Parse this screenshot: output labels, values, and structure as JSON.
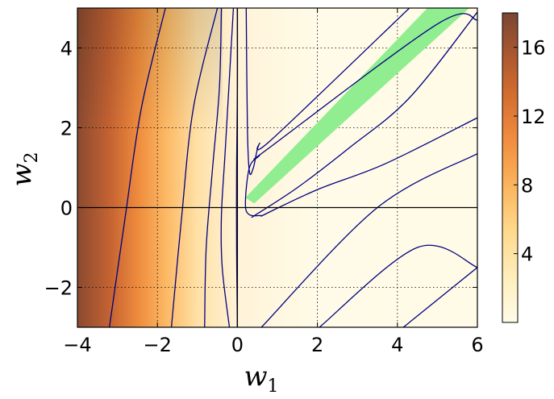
{
  "chart_data": {
    "type": "heatmap",
    "title": "",
    "xlabel": "w",
    "xlabel_sub": "1",
    "ylabel": "w",
    "ylabel_sub": "2",
    "xlim": [
      -4,
      6
    ],
    "ylim": [
      -3,
      5
    ],
    "x_ticks": [
      -4,
      -2,
      0,
      2,
      4,
      6
    ],
    "y_ticks": [
      -2,
      0,
      2,
      4
    ],
    "x_tick_labels": [
      "−4",
      "−2",
      "0",
      "2",
      "4",
      "6"
    ],
    "y_tick_labels": [
      "−2",
      "0",
      "2",
      "4"
    ],
    "grid": true,
    "colorbar": {
      "range": [
        0,
        18
      ],
      "ticks": [
        4,
        8,
        12,
        16
      ],
      "tick_labels": [
        "4",
        "8",
        "12",
        "16"
      ],
      "colormap": [
        "#fffbe8",
        "#fff1c4",
        "#ffd88a",
        "#fbb25a",
        "#f08a3e",
        "#d06a2e",
        "#a65530",
        "#7a4634"
      ]
    },
    "reference_lines": [
      {
        "orientation": "horizontal",
        "value": 0
      },
      {
        "orientation": "vertical",
        "value": 0
      }
    ],
    "contours": [
      {
        "points": [
          [
            -3.2,
            -3
          ],
          [
            -2.8,
            -0.2
          ],
          [
            -2.4,
            2.5
          ],
          [
            -1.8,
            5
          ]
        ]
      },
      {
        "points": [
          [
            -1.65,
            -3
          ],
          [
            -1.4,
            -0.3
          ],
          [
            -1.1,
            2.5
          ],
          [
            -0.5,
            5
          ]
        ]
      },
      {
        "points": [
          [
            -0.82,
            -3
          ],
          [
            -0.78,
            -1
          ],
          [
            -0.62,
            1
          ],
          [
            -0.45,
            3
          ],
          [
            -0.4,
            5
          ]
        ]
      },
      {
        "points": [
          [
            -0.2,
            -3
          ],
          [
            -0.38,
            -1.5
          ],
          [
            -0.4,
            -0.2
          ],
          [
            -0.3,
            1.5
          ],
          [
            -0.1,
            5
          ]
        ]
      },
      {
        "points": [
          [
            0.0,
            -3
          ],
          [
            -0.02,
            -1
          ],
          [
            -0.02,
            1
          ],
          [
            0.0,
            3
          ],
          [
            0.0,
            5
          ]
        ]
      },
      {
        "points": [
          [
            0.22,
            5
          ],
          [
            0.25,
            2
          ],
          [
            0.3,
            0.9
          ],
          [
            0.4,
            1.0
          ],
          [
            0.55,
            1.6
          ],
          [
            0.85,
            1.7
          ],
          [
            4.3,
            5
          ]
        ]
      },
      {
        "points": [
          [
            0.6,
            -0.2
          ],
          [
            0.3,
            -0.18
          ],
          [
            0.2,
            0.1
          ],
          [
            0.3,
            1.0
          ],
          [
            0.55,
            1.3
          ],
          [
            0.8,
            1.5
          ],
          [
            5.0,
            4.6
          ],
          [
            6.0,
            4.7
          ]
        ]
      },
      {
        "points": [
          [
            0.35,
            -0.25
          ],
          [
            1.5,
            0.5
          ],
          [
            2.8,
            1.5
          ],
          [
            4.3,
            2.75
          ],
          [
            6.0,
            4.9
          ]
        ]
      },
      {
        "points": [
          [
            0.58,
            -0.22
          ],
          [
            2.0,
            0.45
          ],
          [
            3.7,
            1.1
          ],
          [
            6.0,
            2.25
          ]
        ]
      },
      {
        "points": [
          [
            0.6,
            -3
          ],
          [
            3.5,
            0.0
          ],
          [
            6.0,
            1.35
          ]
        ]
      },
      {
        "points": [
          [
            2.05,
            -3
          ],
          [
            4.5,
            -1.0
          ],
          [
            6.0,
            -1.5
          ]
        ]
      },
      {
        "points": [
          [
            4.15,
            -3
          ],
          [
            6.0,
            -1.5
          ]
        ]
      }
    ],
    "green_region": [
      [
        0.2,
        0.25
      ],
      [
        4.75,
        5.0
      ],
      [
        5.8,
        5.0
      ],
      [
        0.42,
        0.1
      ]
    ]
  }
}
